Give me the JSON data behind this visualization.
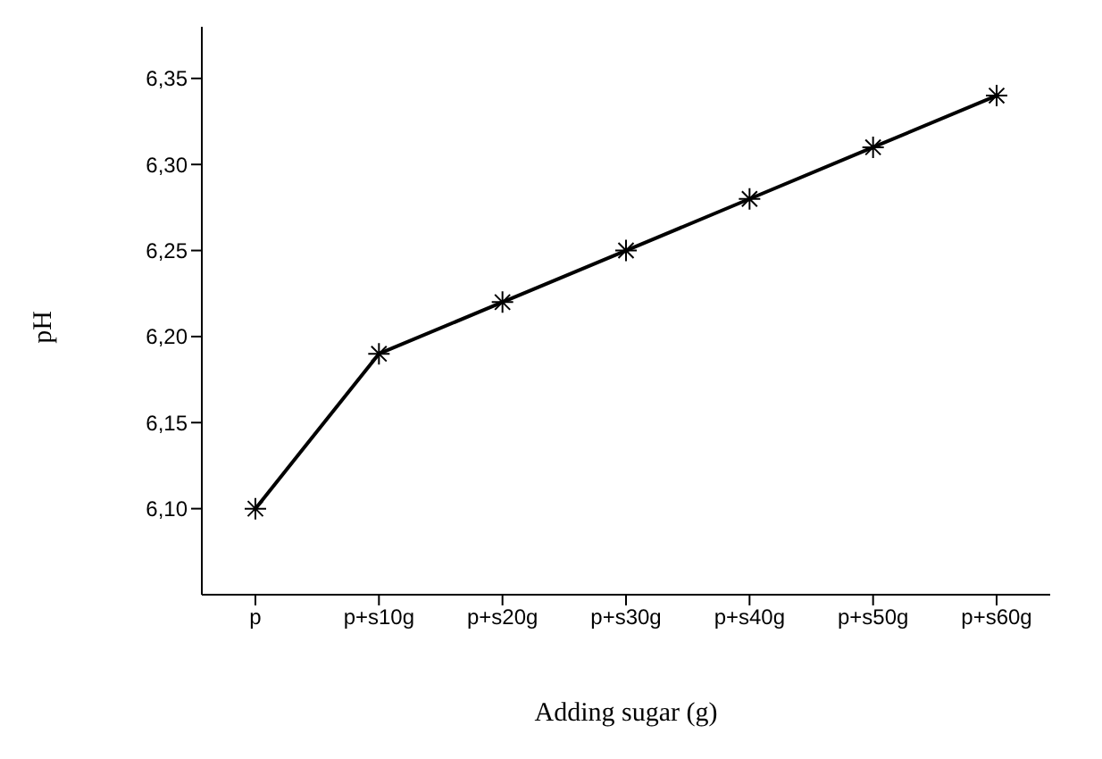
{
  "chart_data": {
    "type": "line",
    "xlabel": "Adding sugar (g)",
    "ylabel": "pH",
    "categories": [
      "p",
      "p+s10g",
      "p+s20g",
      "p+s30g",
      "p+s40g",
      "p+s50g",
      "p+s60g"
    ],
    "series": [
      {
        "color": "#000000",
        "values": [
          6.1,
          6.19,
          6.22,
          6.25,
          6.28,
          6.31,
          6.34
        ]
      }
    ],
    "ylim": [
      6.05,
      6.38
    ],
    "yticks": [
      {
        "value": 6.1,
        "label": "6,10"
      },
      {
        "value": 6.15,
        "label": "6,15"
      },
      {
        "value": 6.2,
        "label": "6,20"
      },
      {
        "value": 6.25,
        "label": "6,25"
      },
      {
        "value": 6.3,
        "label": "6,30"
      },
      {
        "value": 6.35,
        "label": "6,35"
      }
    ],
    "grid": false,
    "legend": false,
    "marker": "cross",
    "line_style": "solid"
  }
}
